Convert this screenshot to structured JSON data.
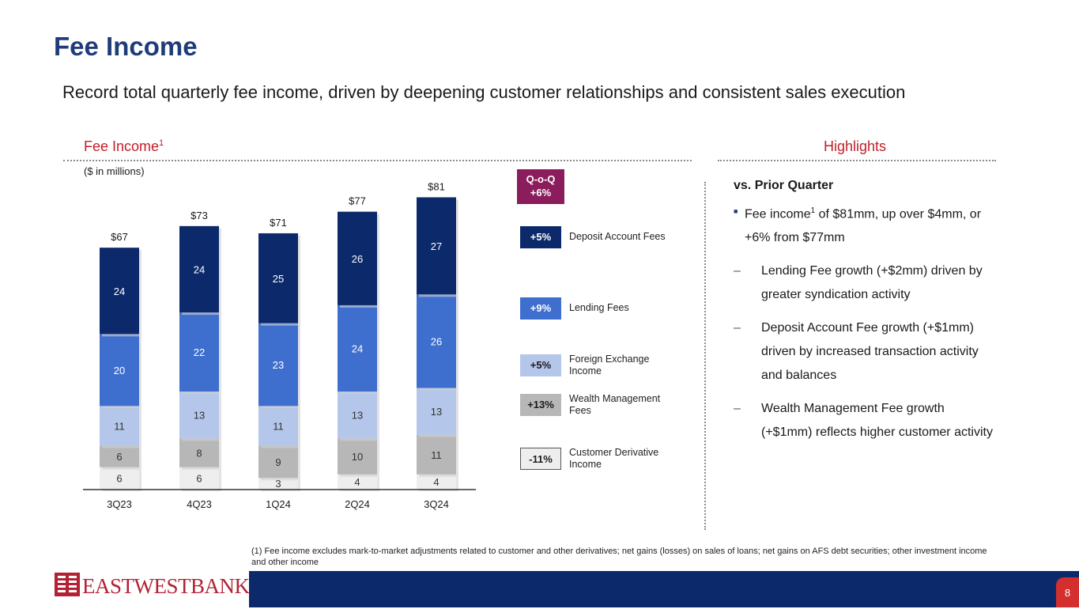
{
  "title": "Fee Income",
  "subtitle": "Record total quarterly fee income, driven by deepening customer relationships and consistent sales execution",
  "fee_section": {
    "label": "Fee Income",
    "footnote_marker": "1",
    "units": "($ in millions)"
  },
  "highlights_section": {
    "label": "Highlights"
  },
  "qoq": {
    "line1": "Q-o-Q",
    "line2": "+6%"
  },
  "legend": [
    {
      "change": "+5%",
      "label": "Deposit Account Fees",
      "color": "#0c2a6b",
      "text_color": "#ffffff"
    },
    {
      "change": "+9%",
      "label": "Lending Fees",
      "color": "#3f6fce",
      "text_color": "#ffffff"
    },
    {
      "change": "+5%",
      "label": "Foreign Exchange Income",
      "color": "#b4c6ea",
      "text_color": "#1a1a1a"
    },
    {
      "change": "+13%",
      "label": "Wealth Management Fees",
      "color": "#b7b7b7",
      "text_color": "#1a1a1a"
    },
    {
      "change": "-11%",
      "label": "Customer Derivative Income",
      "color": "#eeeeee",
      "text_color": "#1a1a1a"
    }
  ],
  "chart_data": {
    "type": "bar",
    "stacked": true,
    "title": "Fee Income",
    "ylabel": "($ in millions)",
    "categories": [
      "3Q23",
      "4Q23",
      "1Q24",
      "2Q24",
      "3Q24"
    ],
    "totals": [
      "$67",
      "$73",
      "$71",
      "$77",
      "$81"
    ],
    "series": [
      {
        "name": "Customer Derivative Income",
        "values": [
          6,
          6,
          3,
          4,
          4
        ],
        "color": "#eeeeee"
      },
      {
        "name": "Wealth Management Fees",
        "values": [
          6,
          8,
          9,
          10,
          11
        ],
        "color": "#b7b7b7"
      },
      {
        "name": "Foreign Exchange Income",
        "values": [
          11,
          13,
          11,
          13,
          13
        ],
        "color": "#b4c6ea"
      },
      {
        "name": "Lending Fees",
        "values": [
          20,
          22,
          23,
          24,
          26
        ],
        "color": "#3f6fce"
      },
      {
        "name": "Deposit Account Fees",
        "values": [
          24,
          24,
          25,
          26,
          27
        ],
        "color": "#0c2a6b"
      }
    ],
    "ylim": [
      0,
      85
    ]
  },
  "highlights": {
    "heading": "vs. Prior Quarter",
    "bullet": {
      "pre": "Fee income",
      "sup": "1",
      "post": " of $81mm, up over $4mm, or +6% from $77mm"
    },
    "subbullets": [
      "Lending Fee growth (+$2mm) driven by greater syndication activity",
      "Deposit Account Fee growth (+$1mm) driven by increased transaction activity and balances",
      "Wealth Management Fee growth (+$1mm) reflects higher customer activity"
    ]
  },
  "footnote": "(1) Fee income excludes mark-to-market adjustments related to customer and other derivatives; net gains (losses) on sales of loans; net gains on AFS debt securities; other investment income and other income",
  "logo": {
    "text": "EASTWESTBANK"
  },
  "page_number": "8"
}
